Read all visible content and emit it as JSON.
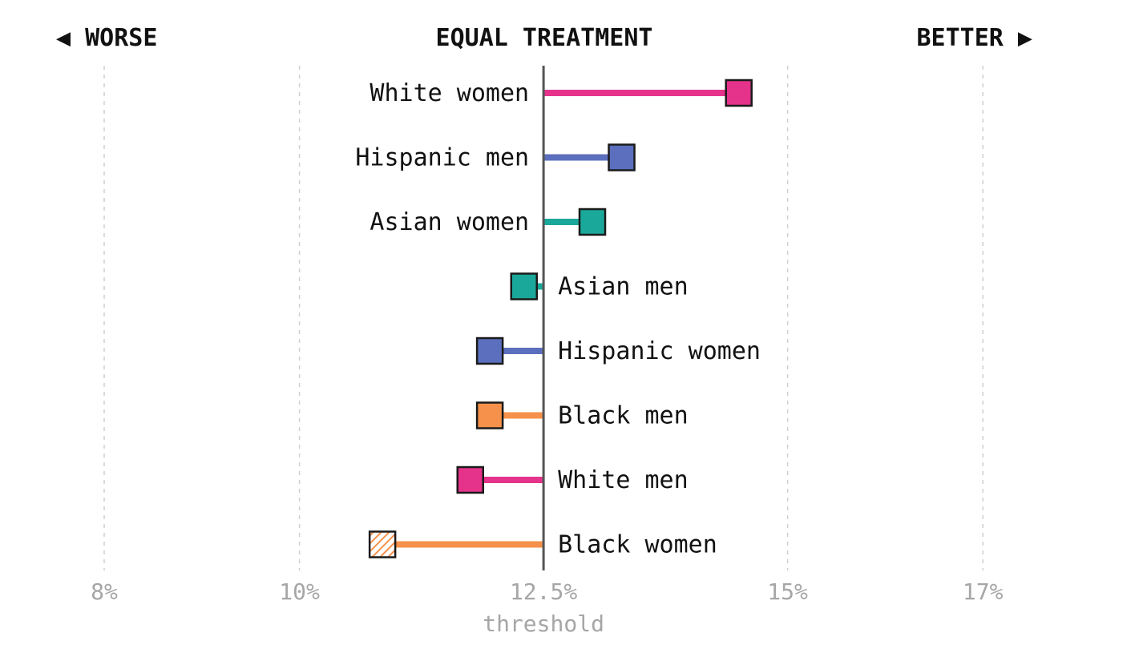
{
  "header": {
    "worse_label": "◀ WORSE",
    "center_label": "EQUAL TREATMENT",
    "better_label": "BETTER ▶"
  },
  "chart_data": {
    "type": "dot",
    "threshold": 12.5,
    "threshold_label": "threshold",
    "xlim": [
      8,
      17
    ],
    "x_ticks": [
      {
        "value": 8,
        "label": "8%"
      },
      {
        "value": 10,
        "label": "10%"
      },
      {
        "value": 12.5,
        "label": "12.5%"
      },
      {
        "value": 15,
        "label": "15%"
      },
      {
        "value": 17,
        "label": "17%"
      }
    ],
    "colors": {
      "white": "#e5338b",
      "hispanic": "#5b6fbe",
      "asian": "#1aa89a",
      "black": "#f5914a"
    },
    "categories": [
      {
        "label": "White women",
        "value": 14.5,
        "color": "#e5338b",
        "pattern": "solid"
      },
      {
        "label": "Hispanic men",
        "value": 13.3,
        "color": "#5b6fbe",
        "pattern": "solid"
      },
      {
        "label": "Asian women",
        "value": 13.0,
        "color": "#1aa89a",
        "pattern": "solid"
      },
      {
        "label": "Asian men",
        "value": 12.3,
        "color": "#1aa89a",
        "pattern": "solid"
      },
      {
        "label": "Hispanic women",
        "value": 11.95,
        "color": "#5b6fbe",
        "pattern": "solid"
      },
      {
        "label": "Black men",
        "value": 11.95,
        "color": "#f5914a",
        "pattern": "solid"
      },
      {
        "label": "White men",
        "value": 11.75,
        "color": "#e5338b",
        "pattern": "solid"
      },
      {
        "label": "Black women",
        "value": 10.85,
        "color": "#f5914a",
        "pattern": "hatched"
      }
    ],
    "grid": true
  }
}
